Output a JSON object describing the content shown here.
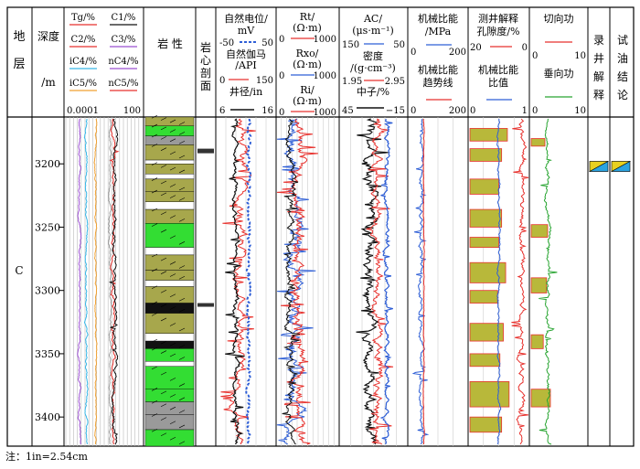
{
  "colors": {
    "red": "#e8322e",
    "blue": "#2f5fd6",
    "black": "#111111",
    "green": "#29a532",
    "orange": "#f0a030",
    "purple": "#9b4fd0",
    "cyan": "#37b8e8",
    "bright_green": "#33dd33",
    "olive": "#a7a74c",
    "gray": "#9a9a9a"
  },
  "headers": {
    "layer": "地层",
    "depth": "深度/m",
    "gas_labels": [
      "Tg/%",
      "C1/%",
      "C2/%",
      "C3/%",
      "iC4/%",
      "nC4/%",
      "iC5/%",
      "nC5/%"
    ],
    "gas_scale_min": "0.0001",
    "gas_scale_max": "100",
    "lithology": "岩 性",
    "core": "岩心剖面",
    "sp_title": "自然电位/mV",
    "sp_min": "-50",
    "sp_max": "50",
    "gr_title": "自然伽马/API",
    "gr_min": "0",
    "gr_max": "150",
    "cal_title": "井径/in",
    "cal_min": "6",
    "cal_max": "16",
    "rt_title": "Rt/(Ω·m)",
    "rxo_title": "Rxo/(Ω·m)",
    "ri_title": "Ri/(Ω·m)",
    "res_min": "0",
    "res_max": "1000",
    "ac_title": "AC/(μs·m⁻¹)",
    "ac_min": "150",
    "ac_max": "50",
    "den_title": "密度/(g·cm⁻³)",
    "den_min": "1.95",
    "den_max": "2.95",
    "cnl_title": "中子/%",
    "cnl_min": "45",
    "cnl_max": "−15",
    "msr_title": "机械比能/MPa",
    "msr_min": "0",
    "msr_max": "200",
    "msr_trend_title": "机械比能趋势线",
    "msr_trend_min": "0",
    "msr_trend_max": "200",
    "poro_title": "测井解释孔隙度/%",
    "poro_min": "20",
    "poro_max": "0",
    "msr_ratio_title": "机械比能比值",
    "msr_ratio_min": "0",
    "msr_ratio_max": "1",
    "shear_title": "切向功",
    "shear_min": "0",
    "shear_max": "10",
    "vert_title": "垂向功",
    "vert_min": "0",
    "vert_max": "10",
    "log_interp": "录井解释",
    "test_result": "试油结论"
  },
  "formation": "C",
  "note": "注：1in=2.54cm",
  "chart_data": {
    "type": "well-log",
    "depth_axis": {
      "label": "深度/m",
      "ticks": [
        3200,
        3250,
        3300,
        3350,
        3400
      ],
      "range": [
        3163,
        3423
      ]
    },
    "formation": "C",
    "lithology_legend": [
      "olive sandstone",
      "bright-green sandstone",
      "gray mudstone",
      "black coal",
      "white"
    ],
    "interpreted_zones": [
      {
        "top": 3198,
        "bottom": 3206
      }
    ]
  }
}
